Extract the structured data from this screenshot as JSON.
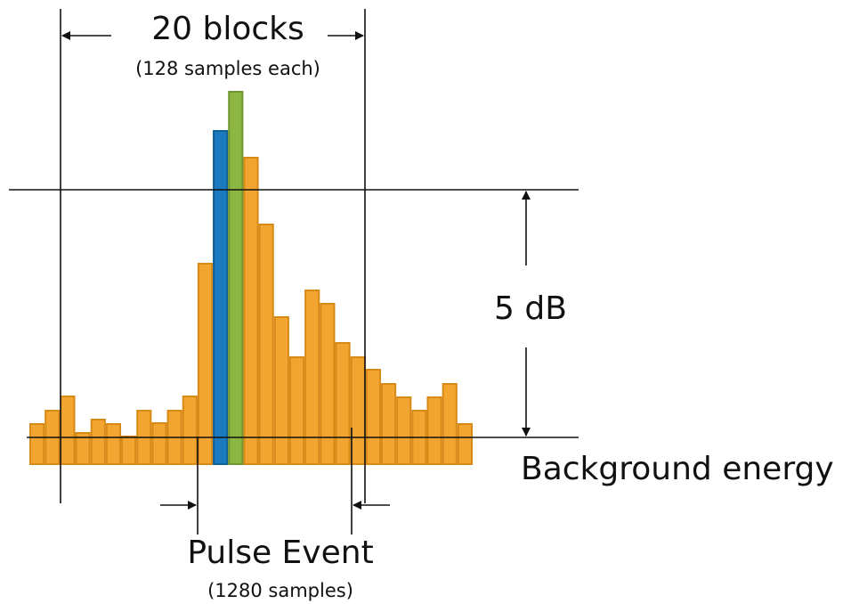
{
  "top_label": {
    "title": "20 blocks",
    "subtitle": "(128 samples each)"
  },
  "threshold_label": "5 dB",
  "baseline_label": "Background energy",
  "bottom_label": {
    "title": "Pulse Event",
    "subtitle": "(1280 samples)"
  }
}
